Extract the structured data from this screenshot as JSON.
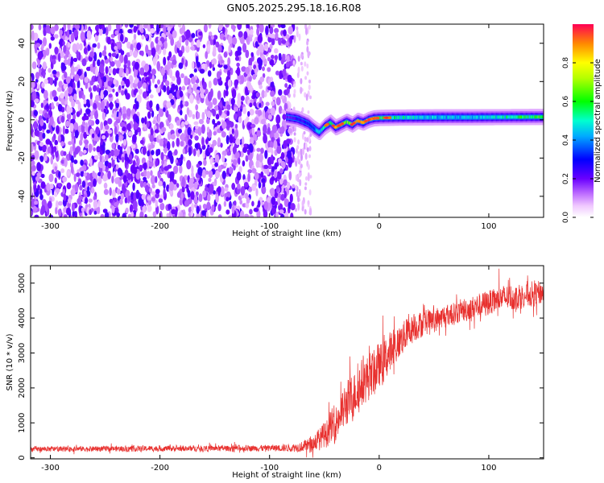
{
  "figure_title": "GN05.2025.295.18.16.R08",
  "chart_data": [
    {
      "type": "heatmap",
      "title": "GN05.2025.295.18.16.R08",
      "xlabel": "Height of straight line (km)",
      "ylabel": "Frequency (Hz)",
      "xlim": [
        -318,
        150
      ],
      "ylim": [
        -51,
        50
      ],
      "xticks": [
        -300,
        -200,
        -100,
        0,
        100
      ],
      "yticks": [
        -40,
        -20,
        0,
        20,
        40
      ],
      "xtick_labels": [
        "-300",
        "-200",
        "-100",
        "0",
        "100"
      ],
      "ytick_labels": [
        "-40",
        "-20",
        "0",
        "20",
        "40"
      ],
      "colorbar": {
        "label": "Normalized spectral amplitude",
        "range": [
          0.0,
          1.0
        ],
        "ticks": [
          0.0,
          0.2,
          0.4,
          0.6,
          0.8
        ],
        "tick_labels": [
          "0.0",
          "0.2",
          "0.4",
          "0.6",
          "0.8"
        ],
        "colormap": "rainbow (white-violet-blue-cyan-green-yellow-red)"
      },
      "noise_region_km": [
        -318,
        -78
      ],
      "signal_onset_km": -85,
      "signal_track": {
        "x": [
          -85,
          -75,
          -65,
          -60,
          -55,
          -50,
          -45,
          -40,
          -35,
          -30,
          -25,
          -20,
          -15,
          -10,
          -5,
          0,
          20,
          50,
          80,
          110,
          150
        ],
        "y": [
          1.5,
          0.5,
          -2.0,
          -4.5,
          -6.5,
          -3.5,
          -1.5,
          -4.0,
          -2.5,
          -1.0,
          -2.5,
          -0.5,
          -1.5,
          0.0,
          0.8,
          1.0,
          1.2,
          1.3,
          1.3,
          1.4,
          1.5
        ],
        "amplitude": [
          0.2,
          0.25,
          0.3,
          0.4,
          0.45,
          0.5,
          0.55,
          0.6,
          0.65,
          0.7,
          0.8,
          0.85,
          0.85,
          0.9,
          0.85,
          0.6,
          0.5,
          0.45,
          0.45,
          0.5,
          0.6
        ]
      }
    },
    {
      "type": "line",
      "xlabel": "Height of straight line (km)",
      "ylabel": "SNR (10 * v/v)",
      "xlim": [
        -318,
        150
      ],
      "ylim": [
        -30,
        5500
      ],
      "xticks": [
        -300,
        -200,
        -100,
        0,
        100
      ],
      "yticks": [
        0,
        1000,
        2000,
        3000,
        4000,
        5000
      ],
      "xtick_labels": [
        "-300",
        "-200",
        "-100",
        "0",
        "100"
      ],
      "ytick_labels": [
        "0",
        "1000",
        "2000",
        "3000",
        "4000",
        "5000"
      ],
      "color": "#e8302e",
      "series": [
        {
          "name": "SNR",
          "x": [
            -318,
            -250,
            -200,
            -150,
            -100,
            -80,
            -70,
            -60,
            -50,
            -40,
            -30,
            -20,
            -10,
            0,
            10,
            20,
            30,
            40,
            50,
            60,
            70,
            80,
            90,
            100,
            110,
            120,
            130,
            140,
            150
          ],
          "y": [
            250,
            260,
            265,
            270,
            280,
            290,
            320,
            420,
            650,
            1000,
            1500,
            1950,
            2300,
            2600,
            3000,
            3400,
            3700,
            3850,
            3950,
            4050,
            4150,
            4250,
            4350,
            4450,
            4550,
            4600,
            4650,
            4700,
            4750
          ],
          "noise_amplitude": [
            90,
            95,
            100,
            100,
            110,
            130,
            180,
            300,
            450,
            650,
            800,
            850,
            850,
            800,
            700,
            600,
            500,
            450,
            420,
            400,
            400,
            420,
            430,
            450,
            450,
            450,
            450,
            450,
            450
          ]
        }
      ]
    }
  ]
}
